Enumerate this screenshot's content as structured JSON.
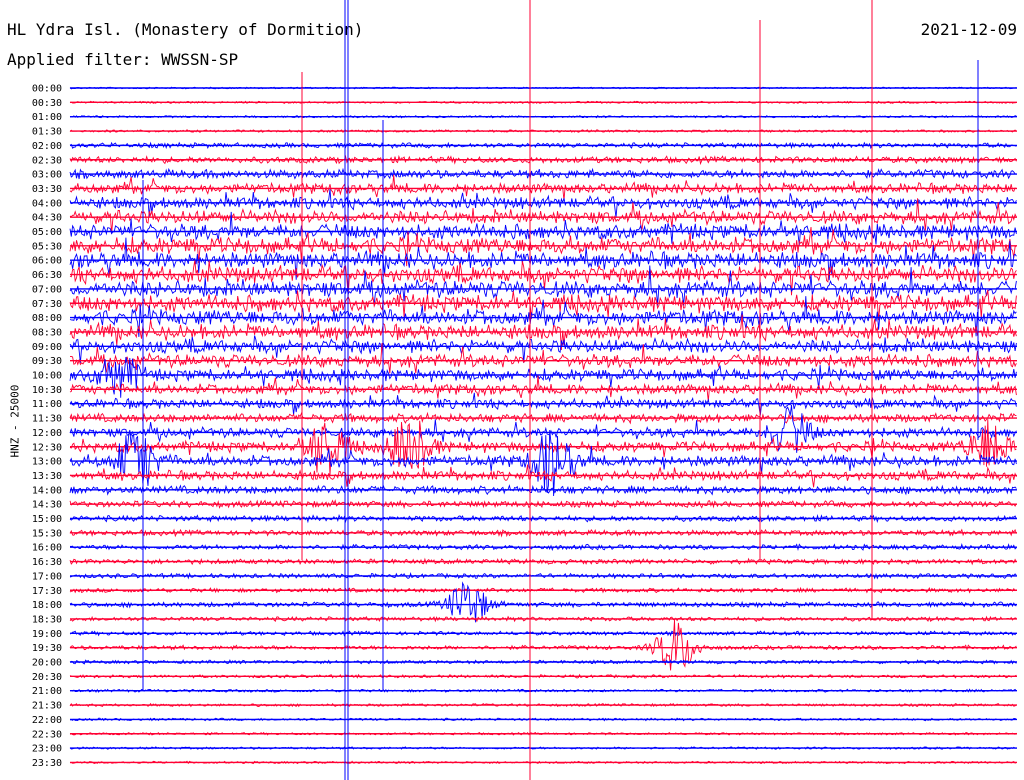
{
  "header": {
    "station": "HL Ydra Isl. (Monastery of Dormition)",
    "filter": "Applied filter: WWSSN-SP",
    "date": "2021-12-09"
  },
  "colors": {
    "even_trace": "#0000ff",
    "odd_trace": "#ff0033",
    "background": "#ffffff",
    "text": "#000000"
  },
  "chart_data": {
    "type": "line",
    "title": "HL Ydra Isl. (Monastery of Dormition)",
    "ylabel": "HNZ - 25000",
    "xlabel": "",
    "series_pattern": "alternating blue / red traces per 30-minute row",
    "rows": [
      "00:00",
      "00:30",
      "01:00",
      "01:30",
      "02:00",
      "02:30",
      "03:00",
      "03:30",
      "04:00",
      "04:30",
      "05:00",
      "05:30",
      "06:00",
      "06:30",
      "07:00",
      "07:30",
      "08:00",
      "08:30",
      "09:00",
      "09:30",
      "10:00",
      "10:30",
      "11:00",
      "11:30",
      "12:00",
      "12:30",
      "13:00",
      "13:30",
      "14:00",
      "14:30",
      "15:00",
      "15:30",
      "16:00",
      "16:30",
      "17:00",
      "17:30",
      "18:00",
      "18:30",
      "19:00",
      "19:30",
      "20:00",
      "20:30",
      "21:00",
      "21:30",
      "22:00",
      "22:30",
      "23:00",
      "23:30"
    ],
    "activity": [
      0.03,
      0.05,
      0.06,
      0.08,
      0.25,
      0.35,
      0.5,
      0.6,
      0.7,
      0.8,
      0.9,
      1.0,
      1.0,
      1.0,
      1.0,
      1.0,
      0.95,
      0.9,
      0.8,
      0.75,
      0.7,
      0.6,
      0.55,
      0.5,
      0.55,
      0.6,
      0.65,
      0.55,
      0.45,
      0.35,
      0.3,
      0.28,
      0.25,
      0.25,
      0.22,
      0.2,
      0.25,
      0.2,
      0.18,
      0.2,
      0.15,
      0.12,
      0.1,
      0.1,
      0.08,
      0.07,
      0.07,
      0.06
    ],
    "events": [
      {
        "row": "13:00",
        "x_fraction": 0.07,
        "strength": 0.8
      },
      {
        "row": "12:30",
        "x_fraction": 0.27,
        "strength": 0.7
      },
      {
        "row": "12:30",
        "x_fraction": 0.36,
        "strength": 0.7
      },
      {
        "row": "13:00",
        "x_fraction": 0.51,
        "strength": 0.8
      },
      {
        "row": "12:30",
        "x_fraction": 0.97,
        "strength": 0.6
      },
      {
        "row": "12:00",
        "x_fraction": 0.76,
        "strength": 0.6
      },
      {
        "row": "18:00",
        "x_fraction": 0.42,
        "strength": 0.6
      },
      {
        "row": "19:30",
        "x_fraction": 0.64,
        "strength": 0.7
      },
      {
        "row": "10:00",
        "x_fraction": 0.05,
        "strength": 0.5
      }
    ]
  }
}
